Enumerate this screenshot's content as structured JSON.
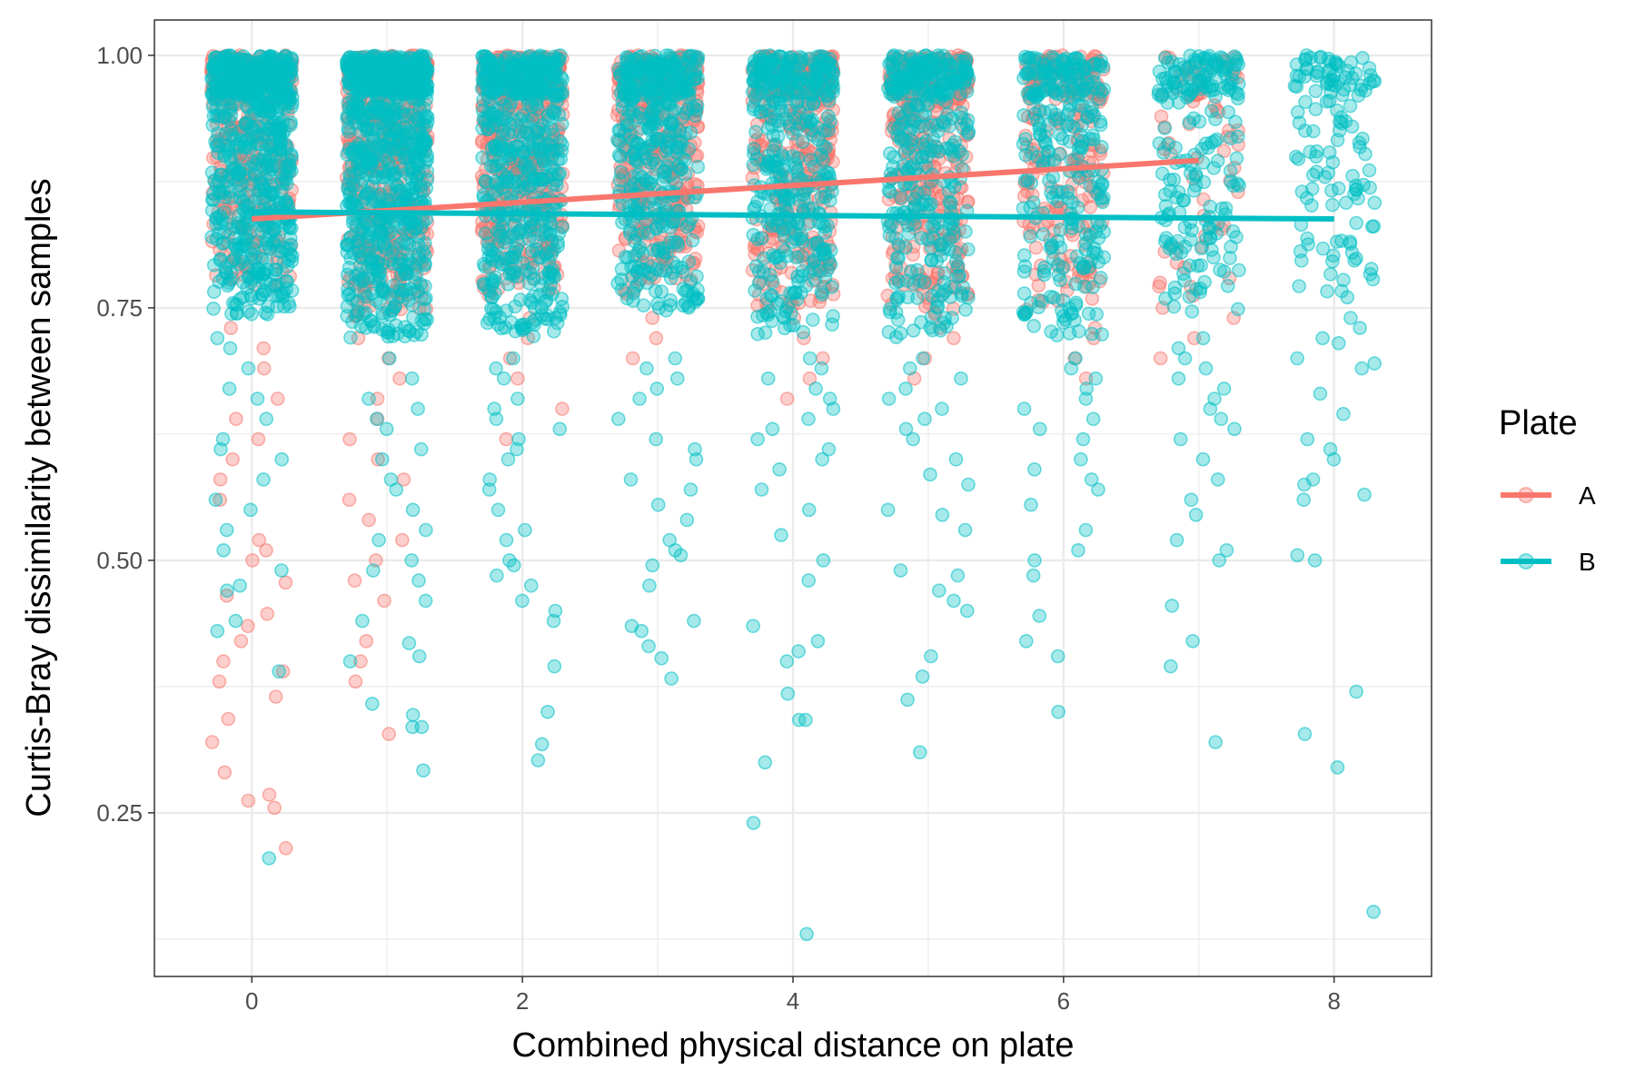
{
  "chart_data": {
    "type": "scatter",
    "title": "",
    "xlabel": "Combined physical distance on plate",
    "ylabel": "Curtis-Bray dissimilarity between samples",
    "xlim": [
      -0.72,
      8.72
    ],
    "ylim": [
      0.088,
      1.035
    ],
    "x_ticks": [
      0,
      2,
      4,
      6,
      8
    ],
    "x_tick_labels": [
      "0",
      "2",
      "4",
      "6",
      "8"
    ],
    "y_ticks": [
      0.25,
      0.5,
      0.75,
      1.0
    ],
    "y_tick_labels": [
      "0.25",
      "0.50",
      "0.75",
      "1.00"
    ],
    "grid": true,
    "jitter_width": 0.3,
    "legend": {
      "title": "Plate",
      "position": "right",
      "entries": [
        {
          "name": "A",
          "color": "#F8766D"
        },
        {
          "name": "B",
          "color": "#00BFC4"
        }
      ]
    },
    "series": [
      {
        "name": "A",
        "color": "#F8766D",
        "point_alpha": 0.35,
        "trend_line": {
          "x": [
            0,
            7
          ],
          "y": [
            0.838,
            0.896
          ]
        },
        "groups": [
          {
            "x": 0,
            "n": 330,
            "dense_low": 0.77,
            "min": 0.215,
            "tail_samples": [
              0.215,
              0.255,
              0.262,
              0.268,
              0.29,
              0.32,
              0.343,
              0.365,
              0.38,
              0.39,
              0.4,
              0.42,
              0.435,
              0.447,
              0.465,
              0.478,
              0.5,
              0.51,
              0.52,
              0.56,
              0.58,
              0.6,
              0.62,
              0.64,
              0.66,
              0.69,
              0.71,
              0.73
            ]
          },
          {
            "x": 1,
            "n": 500,
            "dense_low": 0.74,
            "min": 0.328,
            "tail_samples": [
              0.328,
              0.38,
              0.4,
              0.42,
              0.46,
              0.48,
              0.5,
              0.52,
              0.54,
              0.56,
              0.58,
              0.6,
              0.62,
              0.64,
              0.66,
              0.68,
              0.7,
              0.72
            ]
          },
          {
            "x": 2,
            "n": 480,
            "dense_low": 0.76,
            "min": 0.62,
            "tail_samples": [
              0.62,
              0.65,
              0.68,
              0.7,
              0.72,
              0.74
            ]
          },
          {
            "x": 3,
            "n": 380,
            "dense_low": 0.76,
            "min": 0.7,
            "tail_samples": [
              0.7,
              0.72,
              0.74
            ]
          },
          {
            "x": 4,
            "n": 360,
            "dense_low": 0.75,
            "min": 0.66,
            "tail_samples": [
              0.66,
              0.68,
              0.7,
              0.72,
              0.74
            ]
          },
          {
            "x": 5,
            "n": 320,
            "dense_low": 0.74,
            "min": 0.68,
            "tail_samples": [
              0.68,
              0.7,
              0.72,
              0.73
            ]
          },
          {
            "x": 6,
            "n": 210,
            "dense_low": 0.74,
            "min": 0.68,
            "tail_samples": [
              0.68,
              0.7,
              0.72,
              0.73
            ]
          },
          {
            "x": 7,
            "n": 60,
            "dense_low": 0.76,
            "min": 0.7,
            "tail_samples": [
              0.7,
              0.72,
              0.74,
              0.75
            ]
          }
        ]
      },
      {
        "name": "B",
        "color": "#00BFC4",
        "point_alpha": 0.35,
        "trend_line": {
          "x": [
            0,
            8
          ],
          "y": [
            0.845,
            0.838
          ]
        },
        "groups": [
          {
            "x": 0,
            "n": 650,
            "dense_low": 0.74,
            "min": 0.205,
            "tail_samples": [
              0.205,
              0.39,
              0.43,
              0.44,
              0.47,
              0.475,
              0.49,
              0.51,
              0.53,
              0.55,
              0.56,
              0.58,
              0.6,
              0.61,
              0.62,
              0.64,
              0.66,
              0.67,
              0.69,
              0.71,
              0.72
            ]
          },
          {
            "x": 1,
            "n": 800,
            "dense_low": 0.72,
            "min": 0.292,
            "tail_samples": [
              0.292,
              0.335,
              0.335,
              0.347,
              0.358,
              0.4,
              0.405,
              0.418,
              0.44,
              0.46,
              0.48,
              0.49,
              0.5,
              0.52,
              0.53,
              0.55,
              0.57,
              0.58,
              0.6,
              0.61,
              0.63,
              0.64,
              0.65,
              0.66,
              0.68,
              0.7
            ]
          },
          {
            "x": 2,
            "n": 560,
            "dense_low": 0.72,
            "min": 0.302,
            "tail_samples": [
              0.302,
              0.318,
              0.35,
              0.395,
              0.44,
              0.45,
              0.46,
              0.475,
              0.485,
              0.495,
              0.5,
              0.52,
              0.53,
              0.55,
              0.57,
              0.58,
              0.6,
              0.61,
              0.62,
              0.63,
              0.64,
              0.65,
              0.66,
              0.68,
              0.69,
              0.7
            ]
          },
          {
            "x": 3,
            "n": 420,
            "dense_low": 0.74,
            "min": 0.383,
            "tail_samples": [
              0.383,
              0.403,
              0.415,
              0.43,
              0.435,
              0.44,
              0.475,
              0.495,
              0.505,
              0.51,
              0.52,
              0.54,
              0.555,
              0.57,
              0.58,
              0.6,
              0.61,
              0.62,
              0.64,
              0.66,
              0.67,
              0.68,
              0.69,
              0.7
            ]
          },
          {
            "x": 4,
            "n": 390,
            "dense_low": 0.72,
            "min": 0.13,
            "tail_samples": [
              0.13,
              0.24,
              0.3,
              0.342,
              0.342,
              0.368,
              0.4,
              0.41,
              0.42,
              0.435,
              0.48,
              0.5,
              0.525,
              0.55,
              0.57,
              0.59,
              0.6,
              0.61,
              0.62,
              0.63,
              0.64,
              0.65,
              0.66,
              0.67,
              0.68,
              0.69,
              0.7
            ]
          },
          {
            "x": 5,
            "n": 360,
            "dense_low": 0.72,
            "min": 0.31,
            "tail_samples": [
              0.31,
              0.362,
              0.385,
              0.405,
              0.45,
              0.46,
              0.47,
              0.485,
              0.49,
              0.53,
              0.545,
              0.55,
              0.575,
              0.585,
              0.6,
              0.62,
              0.63,
              0.64,
              0.65,
              0.66,
              0.67,
              0.68,
              0.69,
              0.7
            ]
          },
          {
            "x": 6,
            "n": 280,
            "dense_low": 0.72,
            "min": 0.35,
            "tail_samples": [
              0.35,
              0.405,
              0.42,
              0.445,
              0.485,
              0.5,
              0.51,
              0.53,
              0.555,
              0.57,
              0.58,
              0.59,
              0.6,
              0.62,
              0.63,
              0.64,
              0.65,
              0.66,
              0.67,
              0.68,
              0.69,
              0.7
            ]
          },
          {
            "x": 7,
            "n": 200,
            "dense_low": 0.74,
            "min": 0.32,
            "tail_samples": [
              0.32,
              0.395,
              0.42,
              0.455,
              0.5,
              0.51,
              0.52,
              0.545,
              0.56,
              0.58,
              0.6,
              0.62,
              0.63,
              0.64,
              0.65,
              0.66,
              0.67,
              0.68,
              0.69,
              0.7,
              0.71,
              0.72
            ]
          },
          {
            "x": 8,
            "n": 130,
            "dense_low": 0.76,
            "min": 0.152,
            "tail_samples": [
              0.152,
              0.295,
              0.328,
              0.37,
              0.5,
              0.505,
              0.56,
              0.565,
              0.575,
              0.58,
              0.6,
              0.61,
              0.62,
              0.645,
              0.665,
              0.69,
              0.695,
              0.7,
              0.715,
              0.72,
              0.73,
              0.74
            ]
          }
        ]
      }
    ]
  }
}
